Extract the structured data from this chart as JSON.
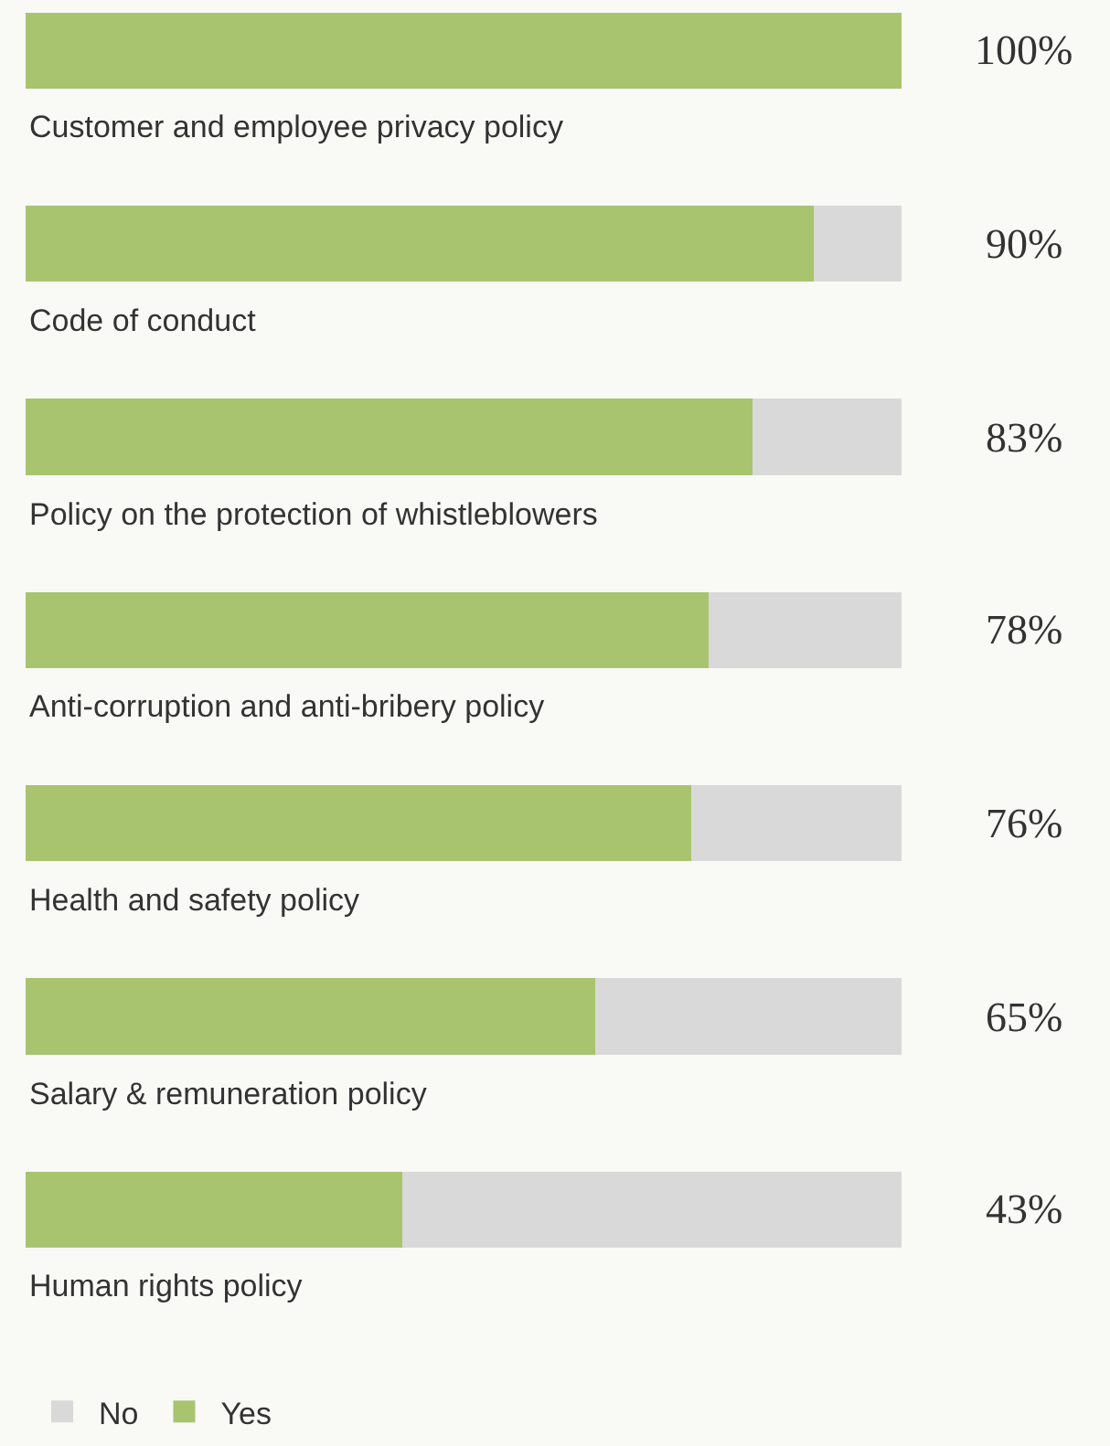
{
  "chart_data": {
    "type": "bar",
    "orientation": "horizontal",
    "stacked": true,
    "categories": [
      "Customer and employee privacy policy",
      "Code of conduct",
      "Policy on the protection of whistleblowers",
      "Anti-corruption and anti-bribery policy",
      "Health and safety policy",
      "Salary & remuneration policy",
      "Human rights policy"
    ],
    "series": [
      {
        "name": "Yes",
        "color": "#a8c46f",
        "values": [
          100,
          90,
          83,
          78,
          76,
          65,
          43
        ],
        "value_labels": [
          "100%",
          "90%",
          "83%",
          "78%",
          "76%",
          "65%",
          "43%"
        ]
      },
      {
        "name": "No",
        "color": "#d9d9d9",
        "values": [
          0,
          10,
          17,
          22,
          24,
          35,
          57
        ]
      }
    ],
    "xlim": [
      0,
      100
    ],
    "legend": "bottom left",
    "grid": false,
    "tick_labels": false
  }
}
